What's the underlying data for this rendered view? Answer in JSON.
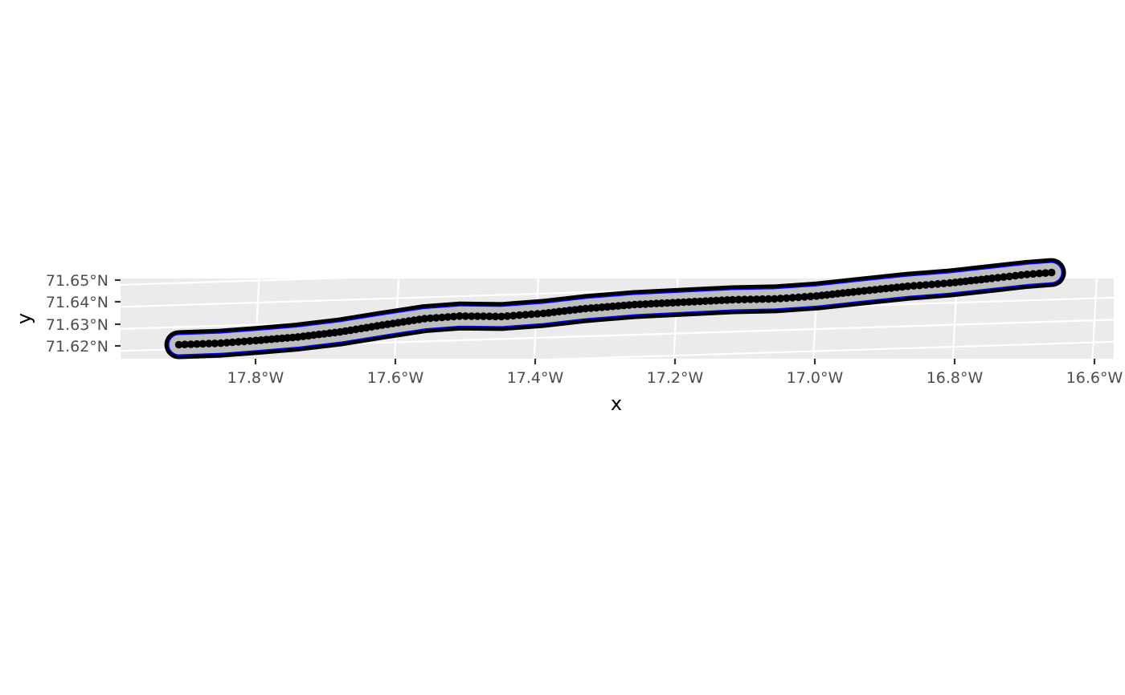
{
  "map": {
    "panel_background": "#ebebeb",
    "grid_color": "#ffffff",
    "track_color": "#000000",
    "buffer_fill": "#bebebe",
    "buffer_outline": "#000000",
    "buffer_outline_width_hint": "thick",
    "inner_line_color": "#0000ff",
    "x_axis": {
      "title": "x",
      "ticks": [
        {
          "value": -17.8,
          "label": "17.8°W"
        },
        {
          "value": -17.6,
          "label": "17.6°W"
        },
        {
          "value": -17.4,
          "label": "17.4°W"
        },
        {
          "value": -17.2,
          "label": "17.2°W"
        },
        {
          "value": -17.0,
          "label": "17.0°W"
        },
        {
          "value": -16.8,
          "label": "16.8°W"
        },
        {
          "value": -16.6,
          "label": "16.6°W"
        }
      ]
    },
    "y_axis": {
      "title": "y",
      "ticks": [
        {
          "value": 71.65,
          "label": "71.65°N"
        },
        {
          "value": 71.64,
          "label": "71.64°N"
        },
        {
          "value": 71.63,
          "label": "71.63°N"
        },
        {
          "value": 71.62,
          "label": "71.62°N"
        }
      ]
    },
    "extent": {
      "lon": [
        -17.9,
        -16.6
      ],
      "lat": [
        71.615,
        71.65
      ]
    },
    "track": [
      {
        "lon": -17.91,
        "lat": 71.622
      },
      {
        "lon": -17.85,
        "lat": 71.6221
      },
      {
        "lon": -17.8,
        "lat": 71.6228
      },
      {
        "lon": -17.74,
        "lat": 71.6238
      },
      {
        "lon": -17.68,
        "lat": 71.6255
      },
      {
        "lon": -17.62,
        "lat": 71.628
      },
      {
        "lon": -17.56,
        "lat": 71.6303
      },
      {
        "lon": -17.51,
        "lat": 71.631
      },
      {
        "lon": -17.45,
        "lat": 71.6302
      },
      {
        "lon": -17.39,
        "lat": 71.631
      },
      {
        "lon": -17.33,
        "lat": 71.6326
      },
      {
        "lon": -17.26,
        "lat": 71.6337
      },
      {
        "lon": -17.19,
        "lat": 71.6341
      },
      {
        "lon": -17.12,
        "lat": 71.6345
      },
      {
        "lon": -17.06,
        "lat": 71.6343
      },
      {
        "lon": -17.0,
        "lat": 71.635
      },
      {
        "lon": -16.94,
        "lat": 71.6365
      },
      {
        "lon": -16.87,
        "lat": 71.6381
      },
      {
        "lon": -16.81,
        "lat": 71.639
      },
      {
        "lon": -16.75,
        "lat": 71.6405
      },
      {
        "lon": -16.7,
        "lat": 71.6418
      },
      {
        "lon": -16.665,
        "lat": 71.6423
      }
    ]
  }
}
